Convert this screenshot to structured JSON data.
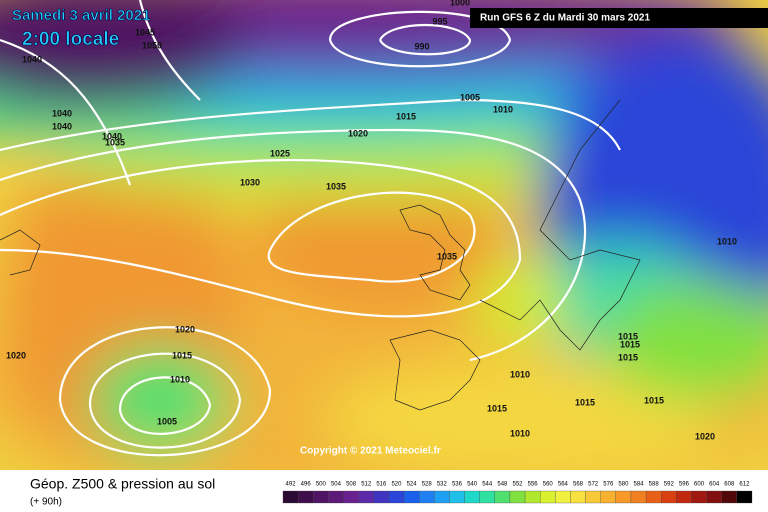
{
  "header": {
    "date": "Samedi 3 avril 2021",
    "time": "2:00 locale",
    "run": "Run GFS 6 Z du Mardi 30 mars 2021"
  },
  "copyright": "Copyright © 2021 Meteociel.fr",
  "footer": {
    "title": "Géop. Z500 & pression au sol",
    "lead": "(+ 90h)"
  },
  "isobar_labels": [
    "1000",
    "995",
    "990",
    "1045",
    "1050",
    "1040",
    "1040",
    "1040",
    "1040",
    "1035",
    "1005",
    "1010",
    "1015",
    "1020",
    "1025",
    "1030",
    "1035",
    "1035",
    "1010",
    "1020",
    "1020",
    "1015",
    "1010",
    "1005",
    "1010",
    "1015",
    "1015",
    "1015",
    "1015",
    "1015",
    "1015",
    "1010",
    "1020"
  ],
  "legend": {
    "levels": [
      492,
      496,
      500,
      504,
      508,
      512,
      516,
      520,
      524,
      528,
      532,
      536,
      540,
      544,
      548,
      552,
      556,
      560,
      564,
      568,
      572,
      576,
      580,
      584,
      588,
      592,
      596,
      600,
      604,
      608,
      612
    ],
    "colors": [
      "#2b0a33",
      "#3d0e4a",
      "#4f1463",
      "#5e1a78",
      "#6a2190",
      "#5a2aa8",
      "#3f35c0",
      "#2a45d8",
      "#1a60ea",
      "#1f80f2",
      "#20a0f2",
      "#20c0e8",
      "#20d8c8",
      "#30e0a0",
      "#50e070",
      "#80e040",
      "#b0e830",
      "#d8f030",
      "#f0f040",
      "#f8e040",
      "#f8c838",
      "#f8b030",
      "#f89828",
      "#f08020",
      "#e86018",
      "#d84010",
      "#c02810",
      "#a01810",
      "#801010",
      "#500808",
      "#000000"
    ]
  }
}
